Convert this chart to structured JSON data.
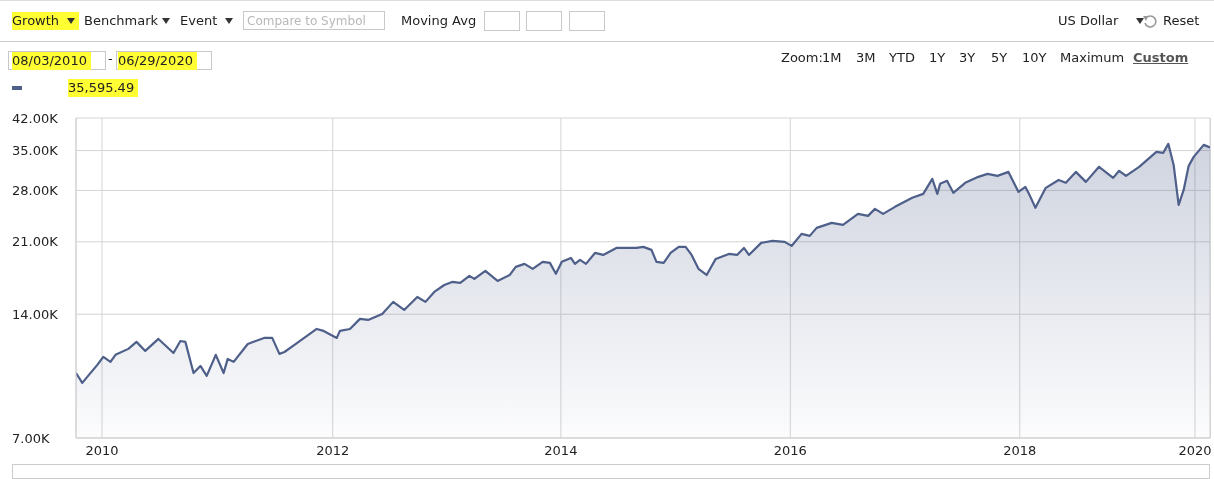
{
  "chart_data": {
    "type": "area",
    "x": [
      "2010-08-03",
      "2010-08-23",
      "2010-10-10",
      "2010-10-29",
      "2010-11-21",
      "2010-12-07",
      "2011-01-17",
      "2011-02-12",
      "2011-03-12",
      "2011-04-23",
      "2011-06-10",
      "2011-07-02",
      "2011-07-18",
      "2011-08-13",
      "2011-09-04",
      "2011-09-24",
      "2011-10-23",
      "2011-11-17",
      "2011-11-30",
      "2011-12-19",
      "2012-02-02",
      "2012-03-25",
      "2012-04-20",
      "2012-05-13",
      "2012-05-29",
      "2012-06-30",
      "2012-09-09",
      "2012-10-01",
      "2012-11-12",
      "2012-11-22",
      "2012-12-24",
      "2013-01-25",
      "2013-02-20",
      "2013-04-06",
      "2013-05-11",
      "2013-06-15",
      "2013-07-27",
      "2013-08-22",
      "2013-09-19",
      "2013-10-21",
      "2013-11-15",
      "2013-12-11",
      "2014-01-09",
      "2014-01-25",
      "2014-03-01",
      "2014-04-09",
      "2014-05-18",
      "2014-06-06",
      "2014-07-04",
      "2014-07-30",
      "2014-08-31",
      "2014-09-23",
      "2014-10-12",
      "2014-10-31",
      "2014-11-29",
      "2014-12-12",
      "2014-12-28",
      "2015-01-16",
      "2015-02-14",
      "2015-03-12",
      "2015-04-23",
      "2015-06-26",
      "2015-07-18",
      "2015-08-13",
      "2015-08-29",
      "2015-09-21",
      "2015-10-13",
      "2015-11-08",
      "2015-11-30",
      "2015-12-19",
      "2016-01-10",
      "2016-02-05",
      "2016-03-05",
      "2016-04-16",
      "2016-05-12",
      "2016-06-03",
      "2016-06-19",
      "2016-07-28",
      "2016-09-02",
      "2016-10-11",
      "2016-11-02",
      "2016-12-04",
      "2016-12-30",
      "2017-01-21",
      "2017-03-10",
      "2017-04-15",
      "2017-06-02",
      "2017-07-04",
      "2017-07-26",
      "2017-08-21",
      "2017-09-28",
      "2017-11-22",
      "2017-12-27",
      "2018-01-25",
      "2018-02-10",
      "2018-02-19",
      "2018-03-13",
      "2018-04-02",
      "2018-05-10",
      "2018-06-21",
      "2018-07-20",
      "2018-08-21",
      "2018-09-25",
      "2018-10-27",
      "2018-11-18",
      "2018-12-01",
      "2018-12-20",
      "2019-01-22",
      "2019-03-04",
      "2019-03-27",
      "2019-04-28",
      "2019-05-30",
      "2019-07-11",
      "2019-08-25",
      "2019-09-13",
      "2019-10-05",
      "2019-11-16",
      "2020-01-10",
      "2020-02-01",
      "2020-02-17",
      "2020-03-05",
      "2020-03-21",
      "2020-04-06",
      "2020-04-22",
      "2020-05-08",
      "2020-06-09",
      "2020-06-29"
    ],
    "values": [
      10070,
      9530,
      10540,
      11020,
      10720,
      11150,
      11530,
      11990,
      11400,
      12190,
      11270,
      12050,
      11990,
      10070,
      10480,
      9910,
      11150,
      10070,
      10900,
      10720,
      11850,
      12260,
      12260,
      11210,
      11330,
      11790,
      12890,
      12750,
      12260,
      12750,
      12890,
      13640,
      13560,
      14020,
      15000,
      14340,
      15420,
      15000,
      15860,
      16490,
      16770,
      16680,
      17350,
      17060,
      17840,
      16870,
      17440,
      18250,
      18560,
      18050,
      18770,
      18660,
      17550,
      18770,
      19190,
      18560,
      18980,
      18560,
      19730,
      19510,
      20290,
      20290,
      20410,
      20070,
      18770,
      18660,
      19730,
      20410,
      20410,
      19510,
      18050,
      17440,
      19080,
      19620,
      19510,
      20290,
      19510,
      20870,
      21110,
      20990,
      20520,
      21950,
      21710,
      22700,
      23350,
      23090,
      24550,
      24280,
      25250,
      24550,
      25540,
      26860,
      27460,
      29880,
      27460,
      29050,
      29540,
      27630,
      29220,
      30210,
      30720,
      30380,
      31060,
      27770,
      28560,
      27310,
      25400,
      28410,
      29690,
      29220,
      31060,
      29370,
      31950,
      30040,
      31250,
      30380,
      31950,
      34750,
      34560,
      36340,
      32300,
      25820,
      28080,
      32130,
      33790,
      36130,
      35600
    ],
    "color": "#4e5f8a",
    "xlim": [
      "2010-08-03",
      "2020-06-29"
    ],
    "xticks": [
      {
        "value": "2010-10-25",
        "label": "2010"
      },
      {
        "value": "2012-10-30",
        "label": "2012"
      },
      {
        "value": "2014-10-28",
        "label": "2014"
      },
      {
        "value": "2016-10-29",
        "label": "2016"
      },
      {
        "value": "2018-10-31",
        "label": "2018"
      },
      {
        "value": "2020-05-12",
        "label": "2020"
      }
    ],
    "ylim": [
      7000,
      42000
    ],
    "yticks": [
      {
        "value": 7000,
        "label": "7.00K"
      },
      {
        "value": 14000,
        "label": "14.00K"
      },
      {
        "value": 21000,
        "label": "21.00K"
      },
      {
        "value": 28000,
        "label": "28.00K"
      },
      {
        "value": 35000,
        "label": "35.00K"
      },
      {
        "value": 42000,
        "label": "42.00K"
      }
    ],
    "log": true,
    "grid": true,
    "annotations": [
      "Growth",
      "Benchmark",
      "Event",
      "Compare to Symbol",
      "Moving Avg",
      "US Dollar",
      "Reset",
      "08/03/2010",
      "-",
      "06/29/2020",
      "Zoom:",
      "1M",
      "3M",
      "YTD",
      "1Y",
      "3Y",
      "5Y",
      "10Y",
      "Maximum",
      "Custom",
      "35,595.49"
    ]
  }
}
